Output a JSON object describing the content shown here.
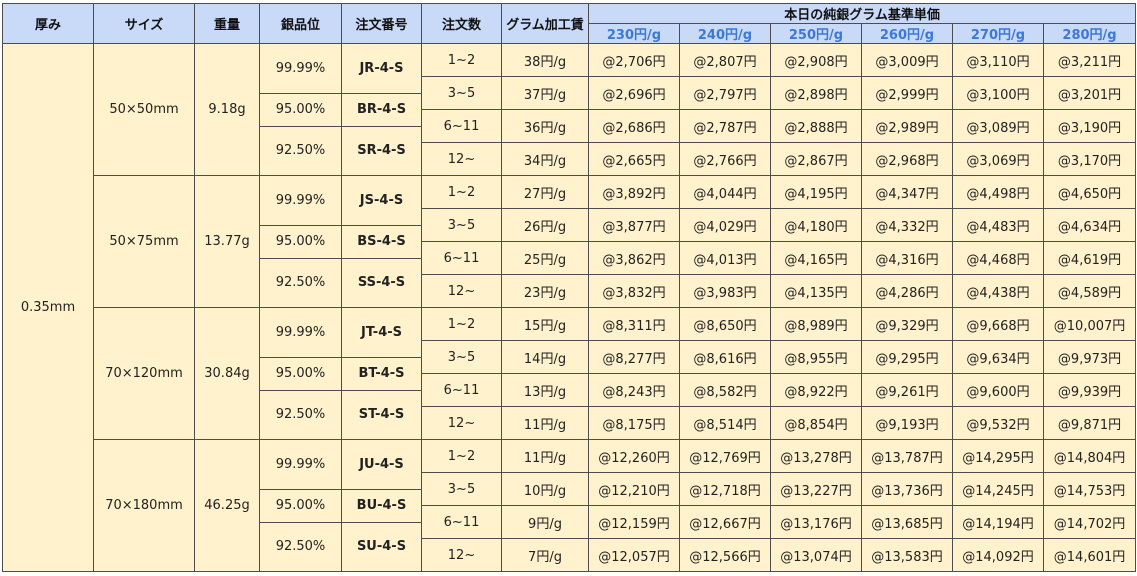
{
  "headers": {
    "thickness": "厚み",
    "size": "サイズ",
    "weight": "重量",
    "purity": "銀品位",
    "order_no": "注文番号",
    "qty": "注文数",
    "processing_fee": "グラム加工賃",
    "base_price": "本日の純銀グラム基準単価",
    "price_levels": [
      "230円/g",
      "240円/g",
      "250円/g",
      "260円/g",
      "270円/g",
      "280円/g"
    ]
  },
  "thickness": "0.35mm",
  "groups": [
    {
      "size": "50×50mm",
      "weight": "9.18g",
      "variants": [
        {
          "purity": "99.99%",
          "code": "JR-4-S"
        },
        {
          "purity": "95.00%",
          "code": "BR-4-S"
        },
        {
          "purity": "92.50%",
          "code": "SR-4-S"
        }
      ],
      "rows": [
        {
          "qty": "1~2",
          "fee": "38円/g",
          "prices": [
            "@2,706円",
            "@2,807円",
            "@2,908円",
            "@3,009円",
            "@3,110円",
            "@3,211円"
          ]
        },
        {
          "qty": "3~5",
          "fee": "37円/g",
          "prices": [
            "@2,696円",
            "@2,797円",
            "@2,898円",
            "@2,999円",
            "@3,100円",
            "@3,201円"
          ]
        },
        {
          "qty": "6~11",
          "fee": "36円/g",
          "prices": [
            "@2,686円",
            "@2,787円",
            "@2,888円",
            "@2,989円",
            "@3,089円",
            "@3,190円"
          ]
        },
        {
          "qty": "12~",
          "fee": "34円/g",
          "prices": [
            "@2,665円",
            "@2,766円",
            "@2,867円",
            "@2,968円",
            "@3,069円",
            "@3,170円"
          ]
        }
      ]
    },
    {
      "size": "50×75mm",
      "weight": "13.77g",
      "variants": [
        {
          "purity": "99.99%",
          "code": "JS-4-S"
        },
        {
          "purity": "95.00%",
          "code": "BS-4-S"
        },
        {
          "purity": "92.50%",
          "code": "SS-4-S"
        }
      ],
      "rows": [
        {
          "qty": "1~2",
          "fee": "27円/g",
          "prices": [
            "@3,892円",
            "@4,044円",
            "@4,195円",
            "@4,347円",
            "@4,498円",
            "@4,650円"
          ]
        },
        {
          "qty": "3~5",
          "fee": "26円/g",
          "prices": [
            "@3,877円",
            "@4,029円",
            "@4,180円",
            "@4,332円",
            "@4,483円",
            "@4,634円"
          ]
        },
        {
          "qty": "6~11",
          "fee": "25円/g",
          "prices": [
            "@3,862円",
            "@4,013円",
            "@4,165円",
            "@4,316円",
            "@4,468円",
            "@4,619円"
          ]
        },
        {
          "qty": "12~",
          "fee": "23円/g",
          "prices": [
            "@3,832円",
            "@3,983円",
            "@4,135円",
            "@4,286円",
            "@4,438円",
            "@4,589円"
          ]
        }
      ]
    },
    {
      "size": "70×120mm",
      "weight": "30.84g",
      "variants": [
        {
          "purity": "99.99%",
          "code": "JT-4-S"
        },
        {
          "purity": "95.00%",
          "code": "BT-4-S"
        },
        {
          "purity": "92.50%",
          "code": "ST-4-S"
        }
      ],
      "rows": [
        {
          "qty": "1~2",
          "fee": "15円/g",
          "prices": [
            "@8,311円",
            "@8,650円",
            "@8,989円",
            "@9,329円",
            "@9,668円",
            "@10,007円"
          ]
        },
        {
          "qty": "3~5",
          "fee": "14円/g",
          "prices": [
            "@8,277円",
            "@8,616円",
            "@8,955円",
            "@9,295円",
            "@9,634円",
            "@9,973円"
          ]
        },
        {
          "qty": "6~11",
          "fee": "13円/g",
          "prices": [
            "@8,243円",
            "@8,582円",
            "@8,922円",
            "@9,261円",
            "@9,600円",
            "@9,939円"
          ]
        },
        {
          "qty": "12~",
          "fee": "11円/g",
          "prices": [
            "@8,175円",
            "@8,514円",
            "@8,854円",
            "@9,193円",
            "@9,532円",
            "@9,871円"
          ]
        }
      ]
    },
    {
      "size": "70×180mm",
      "weight": "46.25g",
      "variants": [
        {
          "purity": "99.99%",
          "code": "JU-4-S"
        },
        {
          "purity": "95.00%",
          "code": "BU-4-S"
        },
        {
          "purity": "92.50%",
          "code": "SU-4-S"
        }
      ],
      "rows": [
        {
          "qty": "1~2",
          "fee": "11円/g",
          "prices": [
            "@12,260円",
            "@12,769円",
            "@13,278円",
            "@13,787円",
            "@14,295円",
            "@14,804円"
          ]
        },
        {
          "qty": "3~5",
          "fee": "10円/g",
          "prices": [
            "@12,210円",
            "@12,718円",
            "@13,227円",
            "@13,736円",
            "@14,245円",
            "@14,753円"
          ]
        },
        {
          "qty": "6~11",
          "fee": "9円/g",
          "prices": [
            "@12,159円",
            "@12,667円",
            "@13,176円",
            "@13,685円",
            "@14,194円",
            "@14,702円"
          ]
        },
        {
          "qty": "12~",
          "fee": "7円/g",
          "prices": [
            "@12,057円",
            "@12,566円",
            "@13,074円",
            "@13,583円",
            "@14,092円",
            "@14,601円"
          ]
        }
      ]
    }
  ]
}
